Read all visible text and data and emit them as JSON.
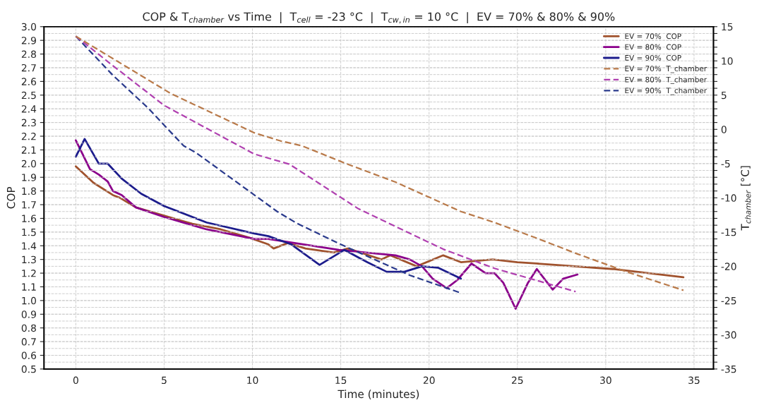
{
  "chart_data": {
    "type": "line",
    "title": "COP & T$_{chamber}$ vs Time  |  T$_{cell}$ = -23 °C  |  T$_{cw,in}$ = 10 °C  |  EV = 70% & 80% & 90%",
    "xlabel": "Time (minutes)",
    "ylabel": "COP",
    "y2label": "T$_{chamber}$ [°C]",
    "xlim": [
      -1.8,
      36.1
    ],
    "xticks": [
      0,
      5,
      10,
      15,
      20,
      25,
      30,
      35
    ],
    "ylim": [
      0.5,
      3.0
    ],
    "yticks": [
      0.5,
      0.6,
      0.7,
      0.8,
      0.9,
      {
        "value": 1,
        "label": "1.0"
      },
      1.1,
      1.2,
      1.3,
      1.4,
      1.5,
      1.6,
      1.7,
      1.8,
      1.9,
      {
        "value": 2,
        "label": "2.0"
      },
      2.1,
      2.2,
      2.3,
      2.4,
      2.5,
      2.6,
      2.7,
      2.8,
      2.9,
      {
        "value": 3,
        "label": "3.0"
      }
    ],
    "y2lim": [
      -35,
      15
    ],
    "y2ticks": [
      -35,
      {
        "value": -34,
        "label": null
      },
      {
        "value": -33,
        "label": null
      },
      {
        "value": -32,
        "label": null
      },
      {
        "value": -31,
        "label": null
      },
      -30,
      {
        "value": -29,
        "label": null
      },
      {
        "value": -28,
        "label": null
      },
      {
        "value": -27,
        "label": null
      },
      {
        "value": -26,
        "label": null
      },
      -25,
      {
        "value": -24,
        "label": null
      },
      {
        "value": -23,
        "label": null
      },
      {
        "value": -22,
        "label": null
      },
      {
        "value": -21,
        "label": null
      },
      -20,
      {
        "value": -19,
        "label": null
      },
      {
        "value": -18,
        "label": null
      },
      {
        "value": -17,
        "label": null
      },
      {
        "value": -16,
        "label": null
      },
      -15,
      {
        "value": -14,
        "label": null
      },
      {
        "value": -13,
        "label": null
      },
      {
        "value": -12,
        "label": null
      },
      {
        "value": -11,
        "label": null
      },
      -10,
      {
        "value": -9,
        "label": null
      },
      {
        "value": -8,
        "label": null
      },
      {
        "value": -7,
        "label": null
      },
      {
        "value": -6,
        "label": null
      },
      -5,
      {
        "value": -4,
        "label": null
      },
      {
        "value": -3,
        "label": null
      },
      {
        "value": -2,
        "label": null
      },
      {
        "value": -1,
        "label": null
      },
      0,
      {
        "value": 1,
        "label": null
      },
      {
        "value": 2,
        "label": null
      },
      {
        "value": 3,
        "label": null
      },
      {
        "value": 4,
        "label": null
      },
      5,
      {
        "value": 6,
        "label": null
      },
      {
        "value": 7,
        "label": null
      },
      {
        "value": 8,
        "label": null
      },
      {
        "value": 9,
        "label": null
      },
      10,
      {
        "value": 11,
        "label": null
      },
      {
        "value": 12,
        "label": null
      },
      {
        "value": 13,
        "label": null
      },
      {
        "value": 14,
        "label": null
      },
      15
    ],
    "grid": true,
    "legend": "top right",
    "series": [
      {
        "name": "EV = 70%  COP",
        "color": "#a0522d",
        "line_style": "solid",
        "x": [
          0,
          1.0,
          2.1,
          2.5,
          3.4,
          5.0,
          6.6,
          8.2,
          9.8,
          10.9,
          11.2,
          12.0,
          13.0,
          14.6,
          15.4,
          17.3,
          17.8,
          19.3,
          20.8,
          21.8,
          23.6,
          25.0,
          26.1,
          30.4,
          34.4
        ],
        "values": [
          1.98,
          1.86,
          1.77,
          1.75,
          1.68,
          1.62,
          1.56,
          1.52,
          1.46,
          1.41,
          1.38,
          1.42,
          1.38,
          1.35,
          1.38,
          1.3,
          1.33,
          1.25,
          1.33,
          1.28,
          1.3,
          1.28,
          1.27,
          1.23,
          1.17
        ]
      },
      {
        "name": "EV = 80%  COP",
        "color": "#8b008b",
        "line_style": "solid",
        "x": [
          0,
          0.8,
          1.3,
          1.8,
          2.1,
          2.6,
          3.4,
          5.0,
          7.4,
          10.1,
          10.9,
          14.9,
          18.1,
          18.9,
          19.6,
          20.2,
          21.0,
          21.6,
          22.4,
          23.2,
          23.7,
          24.2,
          24.9,
          25.6,
          26.1,
          27.0,
          27.6,
          28.4
        ],
        "values": [
          2.17,
          1.96,
          1.92,
          1.87,
          1.8,
          1.77,
          1.68,
          1.61,
          1.52,
          1.45,
          1.45,
          1.37,
          1.33,
          1.3,
          1.25,
          1.16,
          1.09,
          1.15,
          1.27,
          1.2,
          1.2,
          1.13,
          0.94,
          1.13,
          1.23,
          1.08,
          1.16,
          1.19
        ]
      },
      {
        "name": "EV = 90%  COP",
        "color": "#1c1c8c",
        "line_style": "solid",
        "x": [
          0,
          0.5,
          1.3,
          1.8,
          2.6,
          3.7,
          5.0,
          7.4,
          10.1,
          10.9,
          12.2,
          13.8,
          15.2,
          16.5,
          17.6,
          18.6,
          19.6,
          20.5,
          21.8
        ],
        "values": [
          2.05,
          2.18,
          2.0,
          2.0,
          1.89,
          1.78,
          1.69,
          1.57,
          1.49,
          1.47,
          1.41,
          1.26,
          1.37,
          1.28,
          1.21,
          1.21,
          1.25,
          1.24,
          1.16
        ]
      },
      {
        "name": "EV = 70%  T_chamber",
        "color": "#b97a4a",
        "line_style": "dashed",
        "axis": "y2",
        "x": [
          0,
          5.4,
          10.1,
          11.6,
          12.8,
          15.4,
          18.1,
          21.8,
          23.7,
          26.1,
          28.4,
          31.3,
          34.4
        ],
        "values": [
          13.6,
          5.2,
          -0.5,
          -1.7,
          -2.4,
          -5.1,
          -7.7,
          -12.0,
          -13.6,
          -15.9,
          -18.2,
          -20.9,
          -23.5
        ]
      },
      {
        "name": "EV = 80%  T_chamber",
        "color": "#b040b0",
        "line_style": "dashed",
        "axis": "y2",
        "x": [
          0,
          2.1,
          5.0,
          10.1,
          12.1,
          16.0,
          20.8,
          23.7,
          26.0,
          28.3
        ],
        "values": [
          13.6,
          9.3,
          3.5,
          -3.6,
          -5.1,
          -11.6,
          -17.5,
          -20.3,
          -22.0,
          -23.7
        ]
      },
      {
        "name": "EV = 90%  T_chamber",
        "color": "#2a3a8c",
        "line_style": "dashed",
        "axis": "y2",
        "x": [
          0,
          2.1,
          4.1,
          6.1,
          6.8,
          11.4,
          12.5,
          15.0,
          18.9,
          21.8
        ],
        "values": [
          13.6,
          7.9,
          3.1,
          -2.4,
          -3.4,
          -12.0,
          -13.7,
          -16.8,
          -21.3,
          -23.9
        ]
      }
    ]
  }
}
